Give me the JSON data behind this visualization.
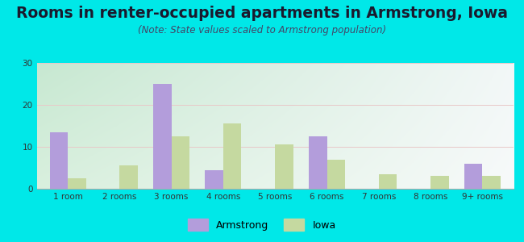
{
  "title": "Rooms in renter-occupied apartments in Armstrong, Iowa",
  "subtitle": "(Note: State values scaled to Armstrong population)",
  "categories": [
    "1 room",
    "2 rooms",
    "3 rooms",
    "4 rooms",
    "5 rooms",
    "6 rooms",
    "7 rooms",
    "8 rooms",
    "9+ rooms"
  ],
  "armstrong_values": [
    13.5,
    0,
    25,
    4.5,
    0,
    12.5,
    0,
    0,
    6
  ],
  "iowa_values": [
    2.5,
    5.5,
    12.5,
    15.5,
    10.5,
    7,
    3.5,
    3,
    3
  ],
  "armstrong_color": "#b39ddb",
  "iowa_color": "#c5d9a0",
  "background_color": "#00e8e8",
  "ylim": [
    0,
    30
  ],
  "yticks": [
    0,
    10,
    20,
    30
  ],
  "bar_width": 0.35,
  "title_fontsize": 13.5,
  "subtitle_fontsize": 8.5,
  "tick_fontsize": 7.5,
  "legend_fontsize": 9
}
